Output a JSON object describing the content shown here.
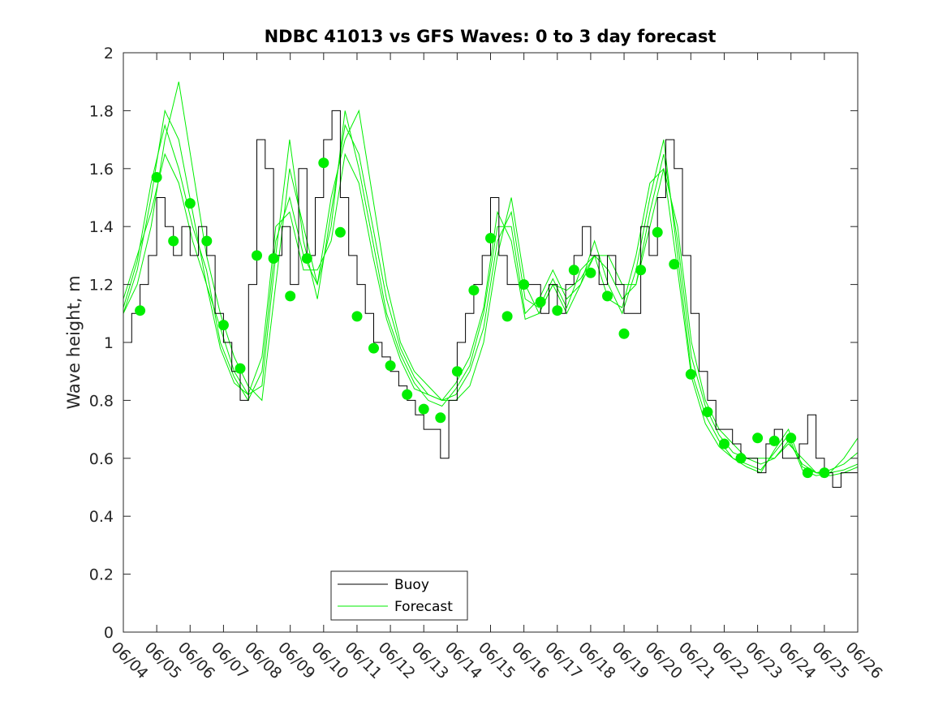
{
  "chart_data": {
    "type": "line",
    "title": "NDBC 41013 vs GFS Waves: 0 to 3 day forecast",
    "xlabel": "",
    "ylabel": "Wave height, m",
    "ylim": [
      0,
      2
    ],
    "yticks": [
      "0",
      "0.2",
      "0.4",
      "0.6",
      "0.8",
      "1",
      "1.2",
      "1.4",
      "1.6",
      "1.8",
      "2"
    ],
    "xticks": [
      "06/04",
      "06/05",
      "06/06",
      "06/07",
      "06/08",
      "06/09",
      "06/10",
      "06/11",
      "06/12",
      "06/13",
      "06/14",
      "06/15",
      "06/16",
      "06/17",
      "06/18",
      "06/19",
      "06/20",
      "06/21",
      "06/22",
      "06/23",
      "06/24",
      "06/25",
      "06/26"
    ],
    "xlim": [
      "06/04",
      "06/26"
    ],
    "grid": false,
    "legend_position": "bottom-left",
    "colors": {
      "buoy": "#000000",
      "forecast": "#00ee00",
      "markers": "#00ee00"
    },
    "series": [
      {
        "name": "Buoy",
        "style": "step",
        "x": [
          "06/04 00:00",
          "06/04 06:00",
          "06/04 12:00",
          "06/04 18:00",
          "06/05 00:00",
          "06/05 06:00",
          "06/05 12:00",
          "06/05 18:00",
          "06/06 00:00",
          "06/06 06:00",
          "06/06 12:00",
          "06/06 18:00",
          "06/07 00:00",
          "06/07 06:00",
          "06/07 12:00",
          "06/07 18:00",
          "06/08 00:00",
          "06/08 06:00",
          "06/08 12:00",
          "06/08 18:00",
          "06/09 00:00",
          "06/09 06:00",
          "06/09 12:00",
          "06/09 18:00",
          "06/10 00:00",
          "06/10 06:00",
          "06/10 12:00",
          "06/10 18:00",
          "06/11 00:00",
          "06/11 06:00",
          "06/11 12:00",
          "06/11 18:00",
          "06/12 00:00",
          "06/12 06:00",
          "06/12 12:00",
          "06/12 18:00",
          "06/13 00:00",
          "06/13 06:00",
          "06/13 12:00",
          "06/13 18:00",
          "06/14 00:00",
          "06/14 06:00",
          "06/14 12:00",
          "06/14 18:00",
          "06/15 00:00",
          "06/15 06:00",
          "06/15 12:00",
          "06/15 18:00",
          "06/16 00:00",
          "06/16 06:00",
          "06/16 12:00",
          "06/16 18:00",
          "06/17 00:00",
          "06/17 06:00",
          "06/17 12:00",
          "06/17 18:00",
          "06/18 00:00",
          "06/18 06:00",
          "06/18 12:00",
          "06/18 18:00",
          "06/19 00:00",
          "06/19 06:00",
          "06/19 12:00",
          "06/19 18:00",
          "06/20 00:00",
          "06/20 06:00",
          "06/20 12:00",
          "06/20 18:00",
          "06/21 00:00",
          "06/21 06:00",
          "06/21 12:00",
          "06/21 18:00",
          "06/22 00:00",
          "06/22 06:00",
          "06/22 12:00",
          "06/22 18:00",
          "06/23 00:00",
          "06/23 06:00",
          "06/23 12:00",
          "06/23 18:00",
          "06/24 00:00",
          "06/24 06:00",
          "06/24 12:00",
          "06/24 18:00",
          "06/25 00:00",
          "06/25 06:00",
          "06/25 12:00",
          "06/25 18:00",
          "06/26 00:00"
        ],
        "values": [
          1.0,
          1.1,
          1.2,
          1.3,
          1.5,
          1.4,
          1.3,
          1.4,
          1.3,
          1.4,
          1.3,
          1.1,
          1.0,
          0.9,
          0.8,
          1.2,
          1.7,
          1.6,
          1.3,
          1.4,
          1.2,
          1.6,
          1.3,
          1.5,
          1.7,
          1.8,
          1.5,
          1.3,
          1.2,
          1.1,
          1.0,
          0.95,
          0.9,
          0.85,
          0.8,
          0.75,
          0.7,
          0.7,
          0.6,
          0.8,
          1.0,
          1.1,
          1.2,
          1.3,
          1.5,
          1.3,
          1.2,
          1.2,
          1.2,
          1.2,
          1.1,
          1.2,
          1.1,
          1.2,
          1.3,
          1.4,
          1.3,
          1.2,
          1.3,
          1.2,
          1.1,
          1.1,
          1.4,
          1.3,
          1.5,
          1.7,
          1.6,
          1.3,
          1.1,
          0.9,
          0.8,
          0.7,
          0.7,
          0.65,
          0.6,
          0.6,
          0.55,
          0.65,
          0.7,
          0.6,
          0.6,
          0.65,
          0.75,
          0.6,
          0.55,
          0.5,
          0.55,
          0.55,
          0.6
        ]
      },
      {
        "name": "Forecast",
        "style": "line",
        "runs": [
          [
            1.1,
            1.2,
            1.4,
            1.7,
            1.9,
            1.6,
            1.3,
            1.1,
            0.95,
            0.85,
            0.8,
            1.2,
            1.6,
            1.4,
            1.2,
            1.5,
            1.7,
            1.8,
            1.5,
            1.2,
            1.0,
            0.9,
            0.85,
            0.8,
            0.8,
            0.85,
            1.0,
            1.3,
            1.5,
            1.2,
            1.1,
            1.2,
            1.1,
            1.2,
            1.3,
            1.3,
            1.2,
            1.2,
            1.4,
            1.6,
            1.4,
            1.0,
            0.8,
            0.7,
            0.65,
            0.6,
            0.6,
            0.6,
            0.65,
            0.6,
            0.55,
            0.55,
            0.6,
            0.67
          ],
          [
            1.1,
            1.25,
            1.5,
            1.8,
            1.7,
            1.45,
            1.2,
            1.05,
            0.9,
            0.82,
            0.85,
            1.3,
            1.7,
            1.35,
            1.15,
            1.45,
            1.75,
            1.65,
            1.4,
            1.15,
            0.98,
            0.88,
            0.82,
            0.8,
            0.82,
            0.9,
            1.05,
            1.35,
            1.45,
            1.15,
            1.12,
            1.22,
            1.12,
            1.25,
            1.3,
            1.25,
            1.15,
            1.2,
            1.45,
            1.65,
            1.35,
            0.95,
            0.78,
            0.68,
            0.62,
            0.6,
            0.58,
            0.6,
            0.66,
            0.58,
            0.55,
            0.56,
            0.58,
            0.62
          ],
          [
            1.12,
            1.28,
            1.55,
            1.75,
            1.6,
            1.4,
            1.25,
            1.0,
            0.88,
            0.8,
            0.9,
            1.35,
            1.5,
            1.3,
            1.2,
            1.4,
            1.8,
            1.6,
            1.35,
            1.1,
            0.96,
            0.86,
            0.8,
            0.78,
            0.84,
            0.92,
            1.1,
            1.4,
            1.4,
            1.1,
            1.15,
            1.25,
            1.15,
            1.2,
            1.35,
            1.2,
            1.1,
            1.25,
            1.5,
            1.7,
            1.3,
            0.9,
            0.75,
            0.66,
            0.6,
            0.58,
            0.56,
            0.62,
            0.68,
            0.56,
            0.54,
            0.55,
            0.56,
            0.58
          ],
          [
            1.15,
            1.3,
            1.45,
            1.65,
            1.55,
            1.35,
            1.2,
            0.98,
            0.86,
            0.82,
            0.95,
            1.4,
            1.45,
            1.25,
            1.25,
            1.35,
            1.65,
            1.55,
            1.3,
            1.08,
            0.94,
            0.84,
            0.82,
            0.8,
            0.86,
            0.95,
            1.12,
            1.45,
            1.35,
            1.08,
            1.1,
            1.2,
            1.18,
            1.22,
            1.3,
            1.15,
            1.12,
            1.3,
            1.55,
            1.6,
            1.25,
            0.88,
            0.72,
            0.64,
            0.6,
            0.57,
            0.55,
            0.63,
            0.7,
            0.57,
            0.55,
            0.54,
            0.55,
            0.57
          ]
        ]
      }
    ],
    "markers": {
      "x": [
        "06/04 12:00",
        "06/05 00:00",
        "06/05 12:00",
        "06/06 00:00",
        "06/06 12:00",
        "06/07 00:00",
        "06/07 12:00",
        "06/08 00:00",
        "06/08 12:00",
        "06/09 00:00",
        "06/09 12:00",
        "06/10 00:00",
        "06/10 12:00",
        "06/11 00:00",
        "06/11 12:00",
        "06/12 00:00",
        "06/12 12:00",
        "06/13 00:00",
        "06/13 12:00",
        "06/14 00:00",
        "06/14 12:00",
        "06/15 00:00",
        "06/15 12:00",
        "06/16 00:00",
        "06/16 12:00",
        "06/17 00:00",
        "06/17 12:00",
        "06/18 00:00",
        "06/18 12:00",
        "06/19 00:00",
        "06/19 12:00",
        "06/20 00:00",
        "06/20 12:00",
        "06/21 00:00",
        "06/21 12:00",
        "06/22 00:00",
        "06/22 12:00",
        "06/23 00:00",
        "06/23 12:00",
        "06/24 00:00",
        "06/24 12:00",
        "06/25 00:00"
      ],
      "values": [
        1.11,
        1.57,
        1.35,
        1.48,
        1.35,
        1.06,
        0.91,
        1.3,
        1.29,
        1.16,
        1.29,
        1.62,
        1.38,
        1.09,
        0.98,
        0.92,
        0.82,
        0.77,
        0.74,
        0.9,
        1.18,
        1.36,
        1.09,
        1.2,
        1.14,
        1.11,
        1.25,
        1.24,
        1.16,
        1.03,
        1.25,
        1.38,
        1.27,
        0.89,
        0.76,
        0.65,
        0.6,
        0.67,
        0.66,
        0.67,
        0.55,
        0.55
      ]
    },
    "legend": [
      "Buoy",
      "Forecast"
    ]
  }
}
